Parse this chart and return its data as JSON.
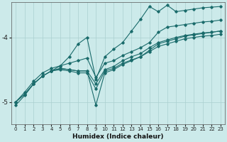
{
  "xlabel": "Humidex (Indice chaleur)",
  "bg_color": "#cceaea",
  "grid_color": "#aacfcf",
  "line_color": "#1a6b6b",
  "xlim": [
    -0.5,
    23.5
  ],
  "ylim": [
    -5.35,
    -3.45
  ],
  "yticks": [
    -5,
    -4
  ],
  "xticks": [
    0,
    1,
    2,
    3,
    4,
    5,
    6,
    7,
    8,
    9,
    10,
    11,
    12,
    13,
    14,
    15,
    16,
    17,
    18,
    19,
    20,
    21,
    22,
    23
  ],
  "series": {
    "xs": [
      0,
      1,
      2,
      3,
      4,
      5,
      6,
      7,
      8,
      9,
      10,
      11,
      12,
      13,
      14,
      15,
      16,
      17,
      18,
      19,
      20,
      21,
      22,
      23
    ],
    "y1": [
      -5.0,
      -4.88,
      -4.72,
      -4.6,
      -4.52,
      -4.5,
      -4.52,
      -4.55,
      -4.55,
      -4.8,
      -4.52,
      -4.48,
      -4.4,
      -4.35,
      -4.3,
      -4.22,
      -4.14,
      -4.1,
      -4.06,
      -4.02,
      -4.0,
      -3.98,
      -3.97,
      -3.95
    ],
    "y2": [
      -5.0,
      -4.88,
      -4.72,
      -4.6,
      -4.52,
      -4.48,
      -4.5,
      -4.52,
      -4.52,
      -4.72,
      -4.5,
      -4.45,
      -4.36,
      -4.3,
      -4.25,
      -4.16,
      -4.08,
      -4.04,
      -4.0,
      -3.97,
      -3.95,
      -3.93,
      -3.92,
      -3.9
    ],
    "y3": [
      -5.0,
      -4.85,
      -4.68,
      -4.55,
      -4.48,
      -4.44,
      -4.4,
      -4.36,
      -4.32,
      -4.62,
      -4.4,
      -4.36,
      -4.28,
      -4.22,
      -4.16,
      -4.08,
      -3.92,
      -3.84,
      -3.82,
      -3.8,
      -3.78,
      -3.76,
      -3.75,
      -3.73
    ],
    "y4_x": [
      0,
      1,
      2,
      3,
      4,
      5,
      6,
      7,
      8,
      9,
      10,
      11,
      12,
      13,
      14,
      15,
      16,
      17,
      18,
      19,
      20,
      21,
      22,
      23
    ],
    "y4": [
      -5.05,
      -4.9,
      -4.72,
      -4.6,
      -4.52,
      -4.48,
      -4.5,
      -4.52,
      -4.52,
      -5.05,
      -4.55,
      -4.5,
      -4.42,
      -4.36,
      -4.3,
      -4.2,
      -4.1,
      -4.06,
      -4.02,
      -3.98,
      -3.96,
      -3.94,
      -3.92,
      -3.9
    ],
    "y5_x": [
      4,
      5,
      6,
      7,
      8,
      9,
      10,
      11,
      12,
      13,
      14,
      15,
      16,
      17,
      18,
      19,
      20,
      21,
      22,
      23
    ],
    "y5": [
      -4.52,
      -4.44,
      -4.3,
      -4.1,
      -4.0,
      -4.65,
      -4.3,
      -4.18,
      -4.08,
      -3.9,
      -3.72,
      -3.52,
      -3.6,
      -3.5,
      -3.6,
      -3.58,
      -3.56,
      -3.54,
      -3.53,
      -3.52
    ]
  }
}
